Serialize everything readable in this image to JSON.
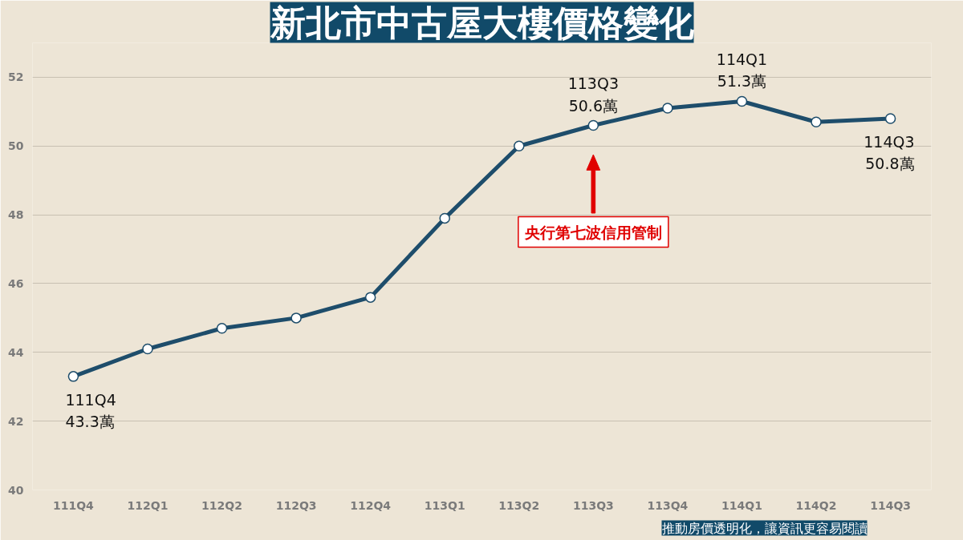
{
  "chart_data": {
    "type": "line",
    "title": "新北市中古屋大樓價格變化",
    "categories": [
      "111Q4",
      "112Q1",
      "112Q2",
      "112Q3",
      "112Q4",
      "113Q1",
      "113Q2",
      "113Q3",
      "113Q4",
      "114Q1",
      "114Q2",
      "114Q3"
    ],
    "series": [
      {
        "color": "#1e4d6b",
        "values": [
          43.3,
          44.1,
          44.7,
          45.0,
          45.6,
          47.9,
          50.0,
          50.6,
          51.1,
          51.3,
          50.7,
          50.8
        ],
        "value_labels": [
          "111Q4\n43.3萬",
          null,
          null,
          null,
          null,
          null,
          null,
          "113Q3\n50.6萬",
          null,
          "114Q1\n51.3萬",
          null,
          "114Q3\n50.8萬"
        ]
      }
    ],
    "ylim": [
      40,
      53
    ],
    "yticks": [
      40,
      42,
      44,
      46,
      48,
      50,
      52
    ],
    "grid": "y",
    "marker": "circle",
    "line_style": "solid",
    "annotations": [
      "央行第七波信用管制",
      "推動房價透明化，讓資訊更容易閱讀"
    ]
  }
}
